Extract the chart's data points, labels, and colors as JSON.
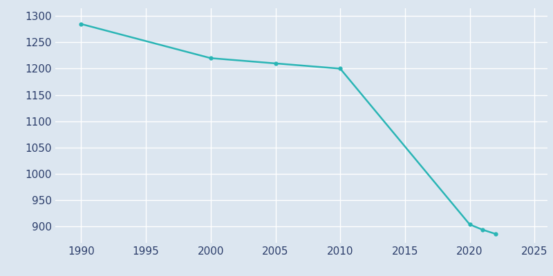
{
  "years": [
    1990,
    2000,
    2005,
    2010,
    2020,
    2021,
    2022
  ],
  "population": [
    1285,
    1220,
    1210,
    1200,
    903,
    893,
    885
  ],
  "line_color": "#2ab5b5",
  "marker_color": "#2ab5b5",
  "bg_color": "#dce6f0",
  "plot_bg_color": "#dce6f0",
  "grid_color": "#ffffff",
  "tick_label_color": "#2c3e6b",
  "xlim": [
    1988,
    2026
  ],
  "ylim": [
    868,
    1315
  ],
  "xticks": [
    1990,
    1995,
    2000,
    2005,
    2010,
    2015,
    2020,
    2025
  ],
  "yticks": [
    900,
    950,
    1000,
    1050,
    1100,
    1150,
    1200,
    1250,
    1300
  ],
  "line_width": 1.8,
  "marker_size": 3.5
}
